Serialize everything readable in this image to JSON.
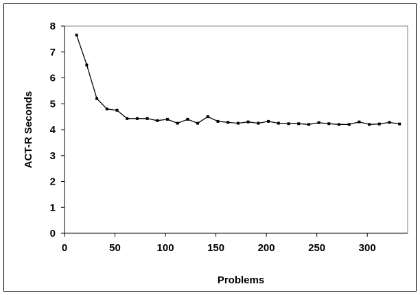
{
  "chart_data": {
    "type": "line",
    "title": "",
    "xlabel": "Problems",
    "ylabel": "ACT-R Seconds",
    "xlim": [
      0,
      340
    ],
    "ylim": [
      0,
      8
    ],
    "x_ticks": [
      0,
      50,
      100,
      150,
      200,
      250,
      300
    ],
    "y_ticks": [
      0,
      1,
      2,
      3,
      4,
      5,
      6,
      7,
      8
    ],
    "grid": false,
    "legend": "none",
    "series": [
      {
        "color": "#000000",
        "marker": "square",
        "x": [
          12,
          22,
          32,
          42,
          52,
          62,
          72,
          82,
          92,
          102,
          112,
          122,
          132,
          142,
          152,
          162,
          172,
          182,
          192,
          202,
          212,
          222,
          232,
          242,
          252,
          262,
          272,
          282,
          292,
          302,
          312,
          322,
          332
        ],
        "y": [
          7.65,
          6.5,
          5.2,
          4.8,
          4.75,
          4.43,
          4.43,
          4.43,
          4.35,
          4.4,
          4.25,
          4.4,
          4.25,
          4.5,
          4.32,
          4.28,
          4.25,
          4.3,
          4.25,
          4.32,
          4.25,
          4.23,
          4.23,
          4.2,
          4.27,
          4.23,
          4.2,
          4.2,
          4.3,
          4.2,
          4.22,
          4.28,
          4.22
        ]
      }
    ]
  }
}
